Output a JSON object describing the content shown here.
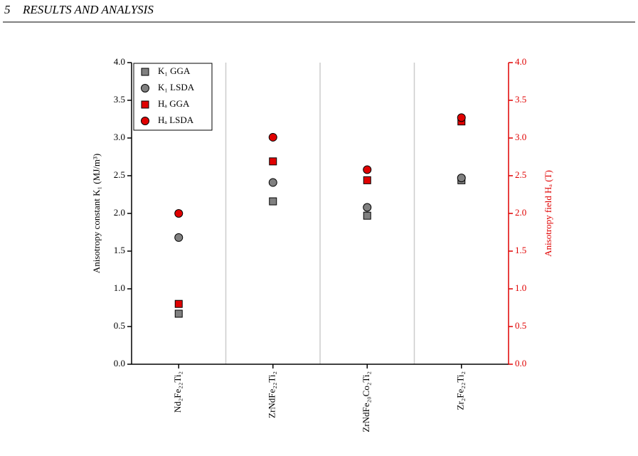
{
  "header": {
    "number": "5",
    "title": "RESULTS AND ANALYSIS"
  },
  "chart_data": {
    "type": "scatter",
    "categories": [
      "Nd₂Fe₂₂Ti₂",
      "ZrNdFe₂₂Ti₂",
      "ZrNdFe₂₀Co₂Ti₂",
      "Zr₂Fe₂₂Ti₂"
    ],
    "ylabel": "Anisotropy constant K₁ (MJ/m³)",
    "y2label": "Anisotropy field Hₐ (T)",
    "ylim": [
      0,
      4
    ],
    "y2lim": [
      0,
      4
    ],
    "yticks": [
      {
        "value": 0,
        "label": "0.0"
      },
      0.5,
      {
        "value": 1,
        "label": "1.0"
      },
      1.5,
      {
        "value": 2,
        "label": "2.0"
      },
      2.5,
      {
        "value": 3,
        "label": "3.0"
      },
      3.5,
      {
        "value": 4,
        "label": "4.0"
      }
    ],
    "y2ticks": [
      {
        "value": 0,
        "label": "0.0"
      },
      0.5,
      {
        "value": 1,
        "label": "1.0"
      },
      1.5,
      {
        "value": 2,
        "label": "2.0"
      },
      2.5,
      {
        "value": 3,
        "label": "3.0"
      },
      3.5,
      {
        "value": 4,
        "label": "4.0"
      }
    ],
    "y2color": "#e00000",
    "legend": "upper left",
    "series": [
      {
        "name": "K₁ GGA",
        "color": "#808080",
        "marker": "square",
        "values": [
          0.67,
          2.16,
          1.97,
          2.44
        ]
      },
      {
        "name": "K₁ LSDA",
        "color": "#808080",
        "marker": "circle",
        "values": [
          1.68,
          2.41,
          2.08,
          2.47
        ]
      },
      {
        "name": "Hₐ GGA",
        "color": "#e00000",
        "marker": "square",
        "axis": "y2",
        "values": [
          0.8,
          2.69,
          2.44,
          3.22
        ]
      },
      {
        "name": "Hₐ LSDA",
        "color": "#e00000",
        "marker": "circle",
        "axis": "y2",
        "values": [
          2.0,
          3.01,
          2.58,
          3.27
        ]
      }
    ]
  }
}
